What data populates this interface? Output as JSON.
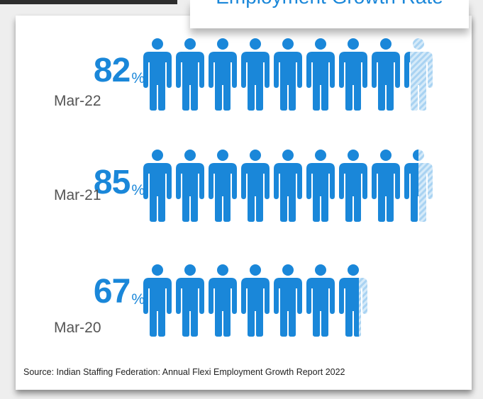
{
  "chart_data": {
    "type": "pictograph",
    "title": "Employment Growth Rate",
    "unit": "%",
    "rows": [
      {
        "period": "Mar-22",
        "value": 82
      },
      {
        "period": "Mar-21",
        "value": 85
      },
      {
        "period": "Mar-20",
        "value": 67
      }
    ],
    "icon": "person-icon",
    "icon_value": 10,
    "colors": {
      "filled": "#1a87d9",
      "partial": "#b9dcf4"
    }
  },
  "source": "Source: Indian Staffing Federation: Annual Flexi Employment Growth Report 2022"
}
